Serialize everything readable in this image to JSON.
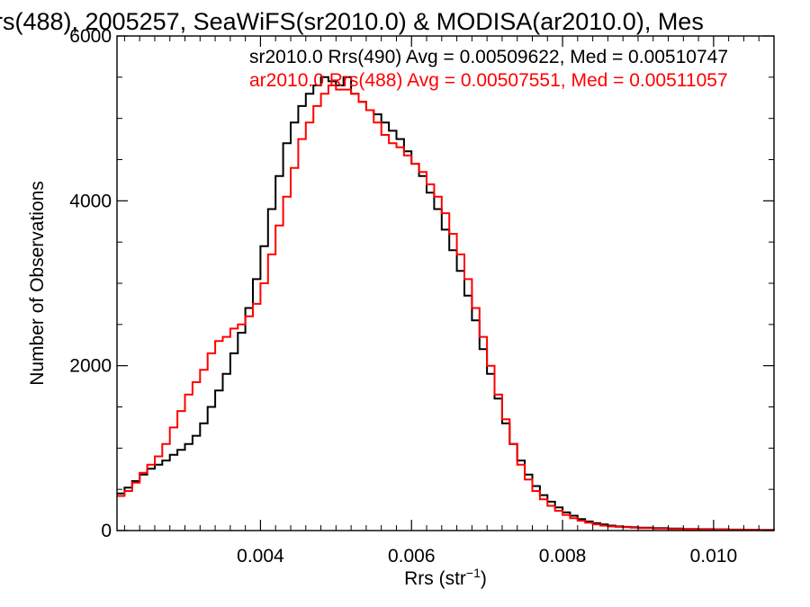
{
  "chart_data": {
    "type": "line",
    "title": "rs(488), 2005257, SeaWiFS(sr2010.0) & MODISA(ar2010.0), Mes",
    "xlabel": "Rrs (str",
    "xlabel_sup": "−1",
    "xlabel_close": ")",
    "ylabel": "Number of Observations",
    "xlim": [
      0.0021,
      0.0108
    ],
    "ylim": [
      0,
      6000
    ],
    "xticks": [
      0.004,
      0.006,
      0.008,
      0.01
    ],
    "xtick_labels": [
      "0.004",
      "0.006",
      "0.008",
      "0.010"
    ],
    "yticks": [
      0,
      2000,
      4000,
      6000
    ],
    "ytick_labels": [
      "0",
      "2000",
      "4000",
      "6000"
    ],
    "grid": false,
    "legend_position": "top-right",
    "series": [
      {
        "name": "sr2010.0 Rrs(490) Avg = 0.00509622, Med = 0.00510747",
        "color": "#000000",
        "x": [
          0.0021,
          0.0022,
          0.0023,
          0.0024,
          0.0025,
          0.0026,
          0.0027,
          0.0028,
          0.0029,
          0.003,
          0.0031,
          0.0032,
          0.0033,
          0.0034,
          0.0035,
          0.0036,
          0.0037,
          0.0038,
          0.0039,
          0.004,
          0.0041,
          0.0042,
          0.0043,
          0.0044,
          0.0045,
          0.0046,
          0.0047,
          0.0048,
          0.0049,
          0.005,
          0.0051,
          0.0052,
          0.0053,
          0.0054,
          0.0055,
          0.0056,
          0.0057,
          0.0058,
          0.0059,
          0.006,
          0.0061,
          0.0062,
          0.0063,
          0.0064,
          0.0065,
          0.0066,
          0.0067,
          0.0068,
          0.0069,
          0.007,
          0.0071,
          0.0072,
          0.0073,
          0.0074,
          0.0075,
          0.0076,
          0.0077,
          0.0078,
          0.0079,
          0.008,
          0.0081,
          0.0082,
          0.0083,
          0.0084,
          0.0085,
          0.0086,
          0.0087,
          0.0088,
          0.0089,
          0.009,
          0.0092,
          0.0094,
          0.0096,
          0.0098,
          0.01,
          0.0102,
          0.0104,
          0.0106,
          0.0108
        ],
        "y": [
          450,
          520,
          600,
          680,
          750,
          800,
          850,
          920,
          980,
          1050,
          1150,
          1300,
          1500,
          1700,
          1900,
          2150,
          2400,
          2700,
          3050,
          3450,
          3900,
          4300,
          4700,
          4950,
          5150,
          5300,
          5400,
          5500,
          5450,
          5400,
          5500,
          5300,
          5200,
          5100,
          5050,
          4950,
          4850,
          4750,
          4600,
          4450,
          4300,
          4100,
          3900,
          3650,
          3400,
          3150,
          2850,
          2550,
          2200,
          1900,
          1600,
          1300,
          1050,
          850,
          680,
          540,
          430,
          350,
          280,
          220,
          180,
          140,
          110,
          90,
          75,
          60,
          50,
          45,
          40,
          35,
          30,
          25,
          20,
          18,
          15,
          12,
          10,
          8,
          6
        ]
      },
      {
        "name": "ar2010.0 Rrs(488) Avg = 0.00507551, Med = 0.00511057",
        "color": "#ff0000",
        "x": [
          0.0021,
          0.0022,
          0.0023,
          0.0024,
          0.0025,
          0.0026,
          0.0027,
          0.0028,
          0.0029,
          0.003,
          0.0031,
          0.0032,
          0.0033,
          0.0034,
          0.0035,
          0.0036,
          0.0037,
          0.0038,
          0.0039,
          0.004,
          0.0041,
          0.0042,
          0.0043,
          0.0044,
          0.0045,
          0.0046,
          0.0047,
          0.0048,
          0.0049,
          0.005,
          0.0051,
          0.0052,
          0.0053,
          0.0054,
          0.0055,
          0.0056,
          0.0057,
          0.0058,
          0.0059,
          0.006,
          0.0061,
          0.0062,
          0.0063,
          0.0064,
          0.0065,
          0.0066,
          0.0067,
          0.0068,
          0.0069,
          0.007,
          0.0071,
          0.0072,
          0.0073,
          0.0074,
          0.0075,
          0.0076,
          0.0077,
          0.0078,
          0.0079,
          0.008,
          0.0081,
          0.0082,
          0.0083,
          0.0084,
          0.0085,
          0.0086,
          0.0087,
          0.0088,
          0.0089,
          0.009,
          0.0092,
          0.0094,
          0.0096,
          0.0098,
          0.01,
          0.0102,
          0.0104,
          0.0106,
          0.0108
        ],
        "y": [
          420,
          480,
          580,
          700,
          800,
          900,
          1050,
          1250,
          1450,
          1650,
          1800,
          1950,
          2150,
          2300,
          2350,
          2450,
          2500,
          2600,
          2750,
          3000,
          3350,
          3700,
          4050,
          4400,
          4750,
          4950,
          5150,
          5300,
          5400,
          5350,
          5350,
          5300,
          5200,
          5100,
          4950,
          4800,
          4700,
          4650,
          4550,
          4450,
          4350,
          4200,
          4050,
          3850,
          3600,
          3350,
          3050,
          2700,
          2350,
          2000,
          1650,
          1350,
          1050,
          800,
          620,
          480,
          380,
          300,
          240,
          190,
          150,
          120,
          95,
          75,
          60,
          50,
          45,
          40,
          35,
          30,
          25,
          20,
          18,
          15,
          12,
          10,
          8,
          6,
          5
        ]
      }
    ]
  }
}
